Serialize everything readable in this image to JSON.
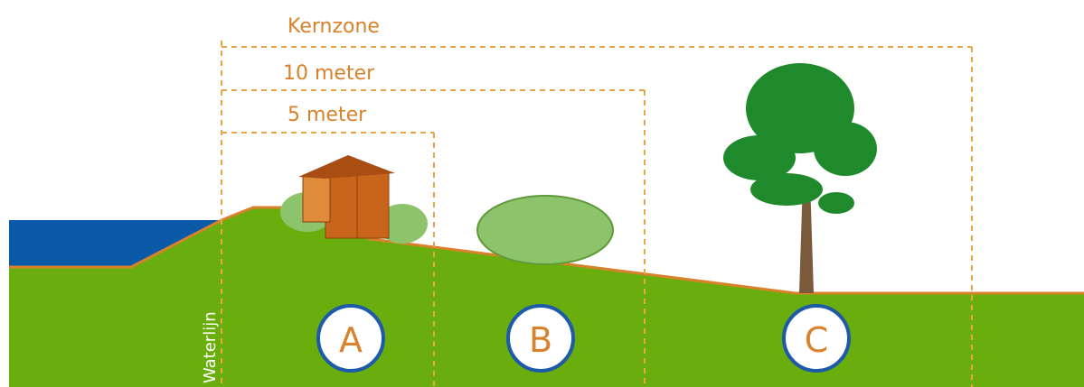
{
  "dimensions": {
    "kernzone": "Kernzone",
    "ten_meter": "10 meter",
    "five_meter": "5 meter"
  },
  "waterline": "Waterlijn",
  "zones": [
    "A",
    "B",
    "C"
  ]
}
